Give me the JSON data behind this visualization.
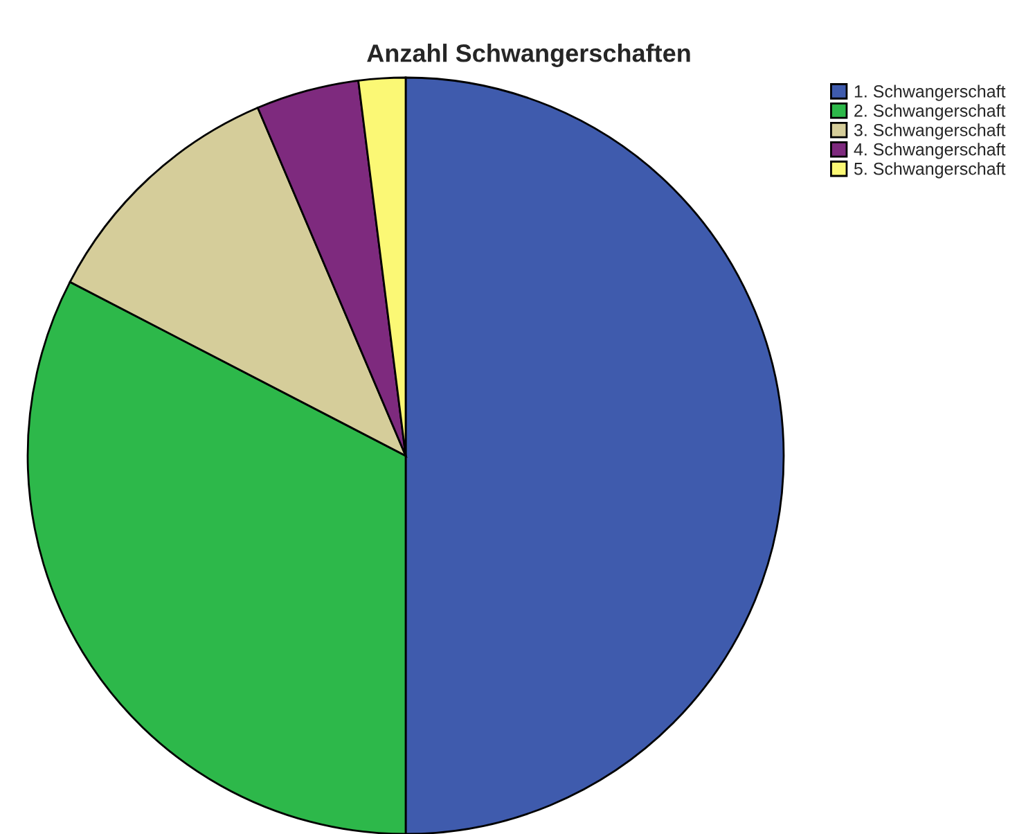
{
  "chart_data": {
    "type": "pie",
    "title": "Anzahl Schwangerschaften",
    "categories": [
      "1. Schwangerschaft",
      "2. Schwangerschaft",
      "3. Schwangerschaft",
      "4. Schwangerschaft",
      "5. Schwangerschaft"
    ],
    "values": [
      50,
      32.6,
      11,
      4.4,
      2
    ],
    "colors": [
      "#3f5bad",
      "#2db84a",
      "#d5cd9a",
      "#7e2a7e",
      "#fbf875"
    ],
    "legend": "top right"
  }
}
